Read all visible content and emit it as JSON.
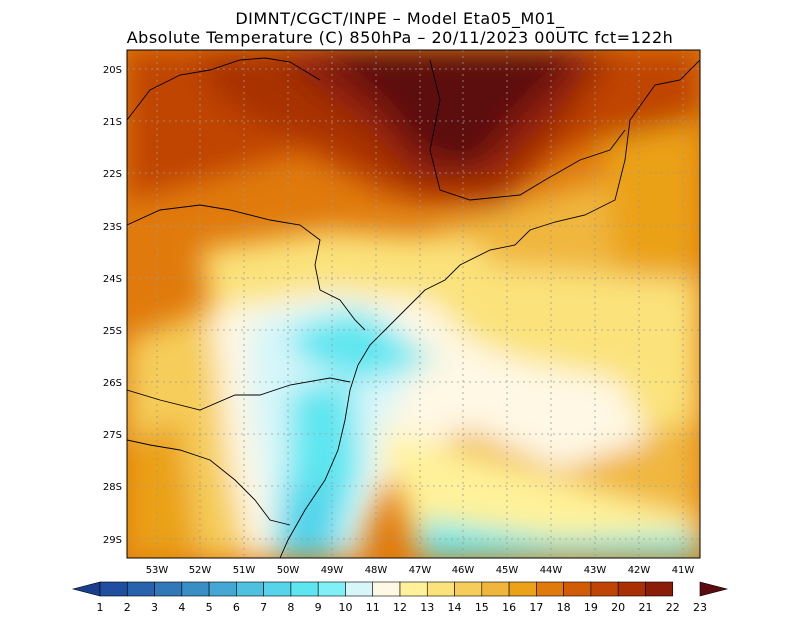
{
  "header": {
    "line1": "DIMNT/CGCT/INPE –  Model Eta05_M01_",
    "line2": "Absolute Temperature (C) 850hPa –  20/11/2023 00UTC fct=122h"
  },
  "axes": {
    "lat_labels": [
      "20S",
      "21S",
      "22S",
      "23S",
      "24S",
      "25S",
      "26S",
      "27S",
      "28S",
      "29S"
    ],
    "lon_labels": [
      "53W",
      "52W",
      "51W",
      "50W",
      "49W",
      "48W",
      "47W",
      "46W",
      "45W",
      "44W",
      "43W",
      "42W",
      "41W"
    ]
  },
  "colorbar": {
    "labels": [
      "1",
      "2",
      "3",
      "4",
      "5",
      "6",
      "7",
      "8",
      "9",
      "10",
      "11",
      "12",
      "13",
      "14",
      "15",
      "16",
      "17",
      "18",
      "19",
      "20",
      "21",
      "22",
      "23"
    ],
    "colors": [
      "#1a3d8c",
      "#1f4f9e",
      "#2763ad",
      "#3078b8",
      "#3a8ec6",
      "#45a8d4",
      "#4fc1e0",
      "#55d4ea",
      "#5de6f0",
      "#7ff0f5",
      "#d6f6fa",
      "#fff8e4",
      "#fff29a",
      "#fbe27a",
      "#f6cd5a",
      "#f0b63c",
      "#eba118",
      "#e07a0c",
      "#d25c06",
      "#c04405",
      "#a83004",
      "#8a1c08",
      "#5c0c10"
    ]
  }
}
